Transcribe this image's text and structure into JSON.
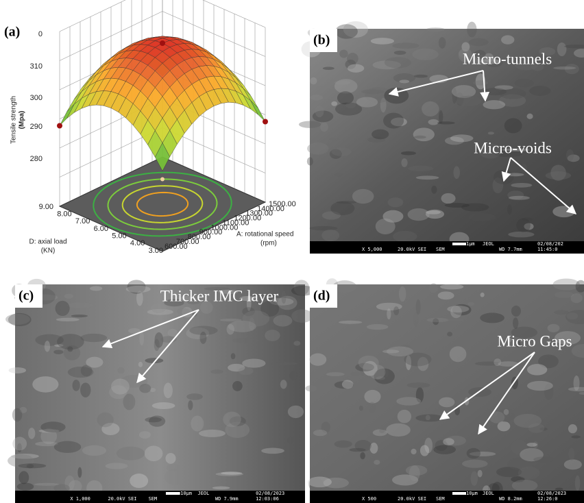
{
  "panel_a": {
    "label": "(a)",
    "z_axis": {
      "title": [
        "Tensile strength",
        "(Mpa)"
      ],
      "ticks": [
        "0",
        "310",
        "300",
        "290",
        "280"
      ]
    },
    "d_axis": {
      "title": [
        "D: axial load",
        "(KN)"
      ],
      "ticks": [
        "9.00",
        "8.00",
        "7.00",
        "6.00",
        "5.00",
        "4.00",
        "3.00"
      ]
    },
    "a_axis": {
      "title": [
        "A: rotational speed",
        "(rpm)"
      ],
      "ticks": [
        "600.00",
        "700.00",
        "800.00",
        "900.00",
        "1000.00",
        "1100.00",
        "1200.00",
        "1300.00",
        "1400.00",
        "1500.00"
      ]
    }
  },
  "panel_b": {
    "label": "(b)",
    "annotations": [
      "Micro-tunnels",
      "Micro-voids"
    ],
    "info_bar": [
      "X 5,000",
      "20.0kV SEI",
      "SEM",
      "1μm",
      "JEOL",
      "WD 7.7mm",
      "02/08/202",
      "11:45:0"
    ]
  },
  "panel_c": {
    "label": "(c)",
    "annotations": [
      "Thicker IMC layer"
    ],
    "info_bar": [
      "X 1,000",
      "20.0kV SEI",
      "SEM",
      "10μm",
      "JEOL",
      "WD 7.9mm",
      "02/08/2023",
      "12:03:06"
    ]
  },
  "panel_d": {
    "label": "(d)",
    "annotations": [
      "Micro Gaps"
    ],
    "info_bar": [
      "X 500",
      "20.0kV SEI",
      "SEM",
      "10μm",
      "JEOL",
      "WD 8.2mm",
      "02/08/2023",
      "12:26:0"
    ]
  }
}
